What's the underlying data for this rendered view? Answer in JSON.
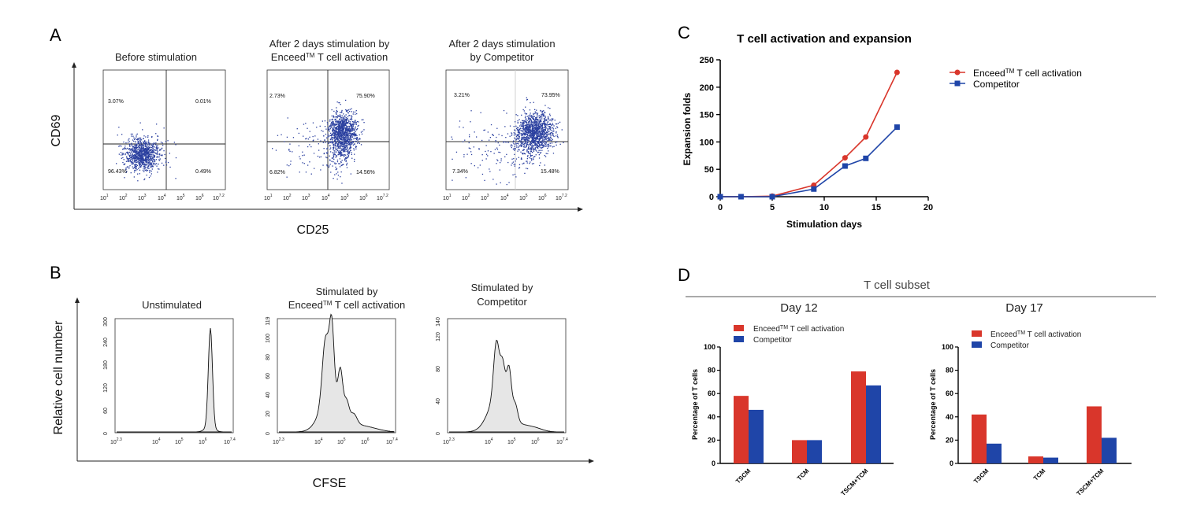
{
  "panel_labels": {
    "a": "A",
    "b": "B",
    "c": "C",
    "d": "D"
  },
  "colors": {
    "red": "#d9362b",
    "blue": "#1f45a8",
    "dots": "#2a3f9f",
    "hist_fill": "#e6e6e6"
  },
  "panel_a": {
    "y_label": "CD69",
    "x_label": "CD25",
    "plots": [
      {
        "title_lines": [
          "Before stimulation"
        ],
        "quadrants": {
          "ul": "3.07%",
          "ur": "0.01%",
          "ll": "96.43%",
          "lr": "0.49%"
        }
      },
      {
        "title_lines": [
          "After 2 days stimulation by",
          "Enceed",
          "TM",
          " T cell activation"
        ],
        "quadrants": {
          "ul": "2.73%",
          "ur": "75.90%",
          "ll": "6.82%",
          "lr": "14.56%"
        }
      },
      {
        "title_lines": [
          "After 2 days stimulation",
          "by Competitor"
        ],
        "quadrants": {
          "ul": "3.21%",
          "ur": "73.95%",
          "ll": "7.34%",
          "lr": "15.48%"
        }
      }
    ],
    "x_ticks": [
      "10",
      "1",
      "10",
      "2",
      "10",
      "3",
      "10",
      "4",
      "10",
      "5",
      "10",
      "6",
      "10",
      "7.2"
    ]
  },
  "panel_b": {
    "y_label": "Relative cell number",
    "x_label": "CFSE",
    "plots": [
      {
        "title_lines": [
          "Unstimulated"
        ],
        "y_ticks": [
          "0",
          "60",
          "120",
          "180",
          "240",
          "300"
        ],
        "peak": 1
      },
      {
        "title_lines": [
          "Stimulated by",
          "Enceed",
          "TM",
          " T cell activation"
        ],
        "y_ticks": [
          "0",
          "20",
          "40",
          "60",
          "80",
          "100",
          "119"
        ],
        "peak": 2
      },
      {
        "title_lines": [
          "Stimulated by",
          "Competitor"
        ],
        "y_ticks": [
          "0",
          "40",
          "80",
          "120",
          "140"
        ],
        "peak": 3
      }
    ],
    "x_ticks": [
      "10",
      "2.3",
      "10",
      "4",
      "10",
      "5",
      "10",
      "6",
      "10",
      "7.4"
    ]
  },
  "chart_data": [
    {
      "type": "line",
      "title": "T cell activation and expansion",
      "xlabel": "Stimulation days",
      "ylabel": "Expansion folds",
      "xlim": [
        0,
        20
      ],
      "ylim": [
        0,
        250
      ],
      "x_ticks": [
        0,
        5,
        10,
        15,
        20
      ],
      "y_ticks": [
        0,
        50,
        100,
        150,
        200,
        250
      ],
      "legend_position": "right",
      "series": [
        {
          "name_main": "Enceed",
          "name_sup": "TM",
          "name_rest": " T cell activation",
          "color": "#d9362b",
          "marker": "circle",
          "x": [
            0,
            2,
            5,
            9,
            12,
            14,
            17
          ],
          "y": [
            0,
            0,
            1,
            21,
            71,
            109,
            227
          ]
        },
        {
          "name": "Competitor",
          "color": "#1f45a8",
          "marker": "square",
          "x": [
            0,
            2,
            5,
            9,
            12,
            14,
            17
          ],
          "y": [
            0,
            0,
            0,
            14,
            56,
            70,
            127
          ]
        }
      ]
    },
    {
      "type": "bar",
      "title": "T cell subset",
      "subtitle": "Day 12",
      "ylabel": "Percentage of T cells",
      "ylim": [
        0,
        100
      ],
      "y_ticks": [
        0,
        20,
        40,
        60,
        80,
        100
      ],
      "categories": [
        "TSCM",
        "TCM",
        "TSCM+TCM"
      ],
      "series": [
        {
          "name_main": "Enceed",
          "name_sup": "TM",
          "name_rest": " T cell activation",
          "color": "#d9362b",
          "values": [
            58,
            20,
            79
          ]
        },
        {
          "name": "Competitor",
          "color": "#1f45a8",
          "values": [
            46,
            20,
            67
          ]
        }
      ]
    },
    {
      "type": "bar",
      "subtitle": "Day 17",
      "ylabel": "Percentage of T cells",
      "ylim": [
        0,
        100
      ],
      "y_ticks": [
        0,
        20,
        40,
        60,
        80,
        100
      ],
      "categories": [
        "TSCM",
        "TCM",
        "TSCM+TCM"
      ],
      "series": [
        {
          "name_main": "Enceed",
          "name_sup": "TM",
          "name_rest": " T cell activation",
          "color": "#d9362b",
          "values": [
            42,
            6,
            49
          ]
        },
        {
          "name": "Competitor",
          "color": "#1f45a8",
          "values": [
            17,
            5,
            22
          ]
        }
      ]
    }
  ]
}
